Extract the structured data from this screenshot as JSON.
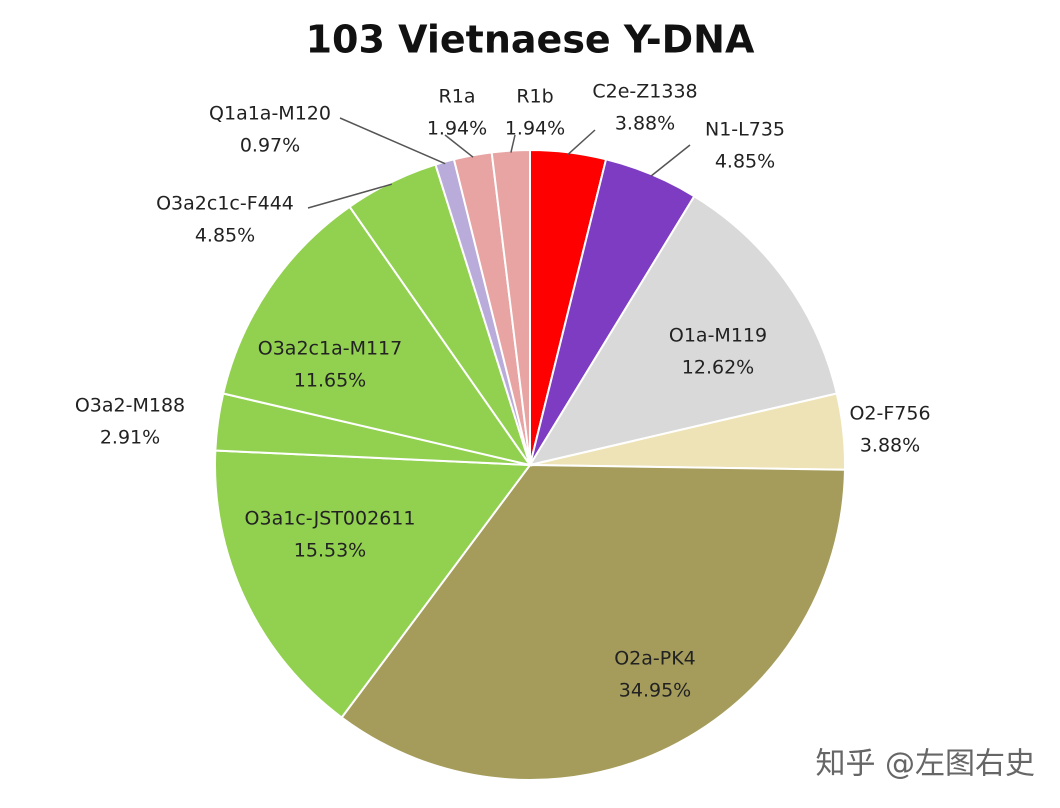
{
  "chart_data": {
    "type": "pie",
    "title": "103 Vietnaese Y-DNA",
    "categories": [
      "C2e-Z1338",
      "N1-L735",
      "O1a-M119",
      "O2-F756",
      "O2a-PK4",
      "O3a1c-JST002611",
      "O3a2-M188",
      "O3a2c1a-M117",
      "O3a2c1c-F444",
      "Q1a1a-M120",
      "R1a",
      "R1b"
    ],
    "values": [
      3.88,
      4.85,
      12.62,
      3.88,
      34.95,
      15.53,
      2.91,
      11.65,
      4.85,
      0.97,
      1.94,
      1.94
    ],
    "value_labels": [
      "3.88%",
      "4.85%",
      "12.62%",
      "3.88%",
      "34.95%",
      "15.53%",
      "2.91%",
      "11.65%",
      "4.85%",
      "0.97%",
      "1.94%",
      "1.94%"
    ],
    "colors": [
      "#ff0000",
      "#7d3cc2",
      "#d9d9d9",
      "#eee3b6",
      "#a59c5c",
      "#92d050",
      "#92d050",
      "#92d050",
      "#92d050",
      "#b9acdb",
      "#e8a3a3",
      "#e8a3a3"
    ]
  },
  "watermark": "知乎 @左图右史"
}
